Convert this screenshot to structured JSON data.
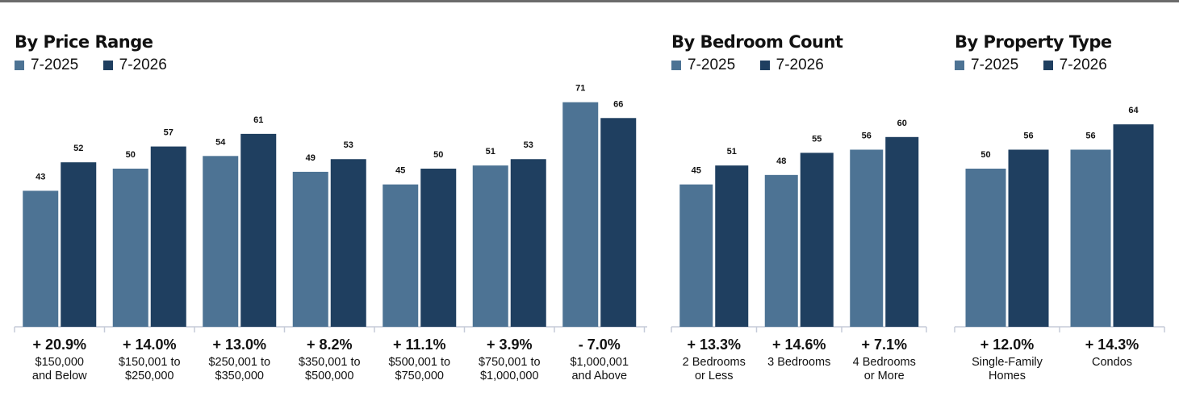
{
  "colors": {
    "y2025": "#4d7394",
    "y2026": "#1f3f60",
    "axis": "#c5cbd8"
  },
  "chart_data": [
    {
      "type": "bar",
      "title": "By Price Range",
      "series": [
        {
          "name": "7-2025",
          "values": [
            43,
            50,
            54,
            49,
            45,
            51,
            71
          ]
        },
        {
          "name": "7-2026",
          "values": [
            52,
            57,
            61,
            53,
            50,
            53,
            66
          ]
        }
      ],
      "categories": [
        [
          "$150,000",
          "and Below"
        ],
        [
          "$150,001 to",
          "$250,000"
        ],
        [
          "$250,001 to",
          "$350,000"
        ],
        [
          "$350,001 to",
          "$500,000"
        ],
        [
          "$500,001 to",
          "$750,000"
        ],
        [
          "$750,001 to",
          "$1,000,000"
        ],
        [
          "$1,000,001",
          "and Above"
        ]
      ],
      "changes": [
        "+ 20.9%",
        "+ 14.0%",
        "+ 13.0%",
        "+ 8.2%",
        "+ 11.1%",
        "+ 3.9%",
        "- 7.0%"
      ]
    },
    {
      "type": "bar",
      "title": "By Bedroom Count",
      "series": [
        {
          "name": "7-2025",
          "values": [
            45,
            48,
            56
          ]
        },
        {
          "name": "7-2026",
          "values": [
            51,
            55,
            60
          ]
        }
      ],
      "categories": [
        [
          "2 Bedrooms",
          "or Less"
        ],
        [
          "3 Bedrooms"
        ],
        [
          "4 Bedrooms",
          "or More"
        ]
      ],
      "changes": [
        "+ 13.3%",
        "+ 14.6%",
        "+ 7.1%"
      ]
    },
    {
      "type": "bar",
      "title": "By Property Type",
      "series": [
        {
          "name": "7-2025",
          "values": [
            50,
            56
          ]
        },
        {
          "name": "7-2026",
          "values": [
            56,
            64
          ]
        }
      ],
      "categories": [
        [
          "Single-Family",
          "Homes"
        ],
        [
          "Condos"
        ]
      ],
      "changes": [
        "+ 12.0%",
        "+ 14.3%"
      ]
    }
  ]
}
